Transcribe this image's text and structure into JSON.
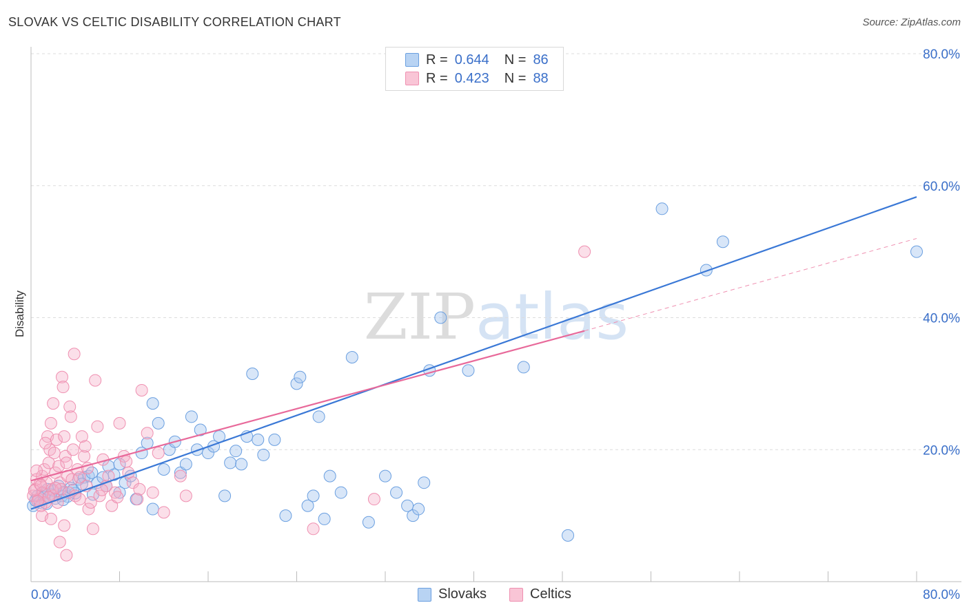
{
  "title": "SLOVAK VS CELTIC DISABILITY CORRELATION CHART",
  "source": "Source: ZipAtlas.com",
  "watermark": "ZIPatlas",
  "legend": {
    "rows": [
      {
        "r_label": "R =",
        "r_value": "0.644",
        "n_label": "N =",
        "n_value": "86",
        "fill": "#b8d3f3",
        "stroke": "#6a9fe0"
      },
      {
        "r_label": "R =",
        "r_value": "0.423",
        "n_label": "N =",
        "n_value": "88",
        "fill": "#f9c5d6",
        "stroke": "#ef8fb0"
      }
    ]
  },
  "bottom_legend": [
    {
      "label": "Slovaks",
      "fill": "#b8d3f3",
      "stroke": "#6a9fe0"
    },
    {
      "label": "Celtics",
      "fill": "#f9c5d6",
      "stroke": "#ef8fb0"
    }
  ],
  "chart_data": {
    "type": "scatter",
    "title": "SLOVAK VS CELTIC DISABILITY CORRELATION CHART",
    "xlabel": "",
    "ylabel": "Disability",
    "xlim": [
      0,
      80
    ],
    "ylim": [
      0,
      80
    ],
    "x_tick_labels": [
      "0.0%",
      "80.0%"
    ],
    "y_tick_labels": [
      "20.0%",
      "40.0%",
      "60.0%",
      "80.0%"
    ],
    "y_ticks": [
      20,
      40,
      60,
      80
    ],
    "grid": true,
    "colors": {
      "blue": "#3a78d6",
      "pink": "#e8699a",
      "blue_fill": "rgba(168,200,240,0.45)",
      "pink_fill": "rgba(246,176,200,0.40)",
      "axis_text": "#3a6fc9"
    },
    "series": [
      {
        "name": "Slovaks",
        "color": "#3a78d6",
        "trend": {
          "x0": 0,
          "y0": 11.0,
          "x1": 80,
          "y1": 58.3
        },
        "points": [
          [
            0.2,
            11.5
          ],
          [
            0.4,
            12.3
          ],
          [
            0.6,
            13.0
          ],
          [
            0.8,
            12.0
          ],
          [
            1.0,
            13.5
          ],
          [
            1.2,
            12.8
          ],
          [
            1.5,
            14.0
          ],
          [
            1.8,
            13.2
          ],
          [
            2.0,
            13.8
          ],
          [
            2.2,
            12.6
          ],
          [
            2.5,
            14.5
          ],
          [
            2.8,
            13.0
          ],
          [
            3.0,
            13.6
          ],
          [
            3.3,
            12.9
          ],
          [
            3.6,
            14.2
          ],
          [
            4.0,
            13.4
          ],
          [
            4.3,
            15.5
          ],
          [
            4.8,
            15.8
          ],
          [
            5.2,
            16.0
          ],
          [
            5.5,
            16.5
          ],
          [
            6.0,
            15.0
          ],
          [
            6.5,
            15.8
          ],
          [
            7.0,
            17.5
          ],
          [
            7.5,
            16.2
          ],
          [
            8.0,
            17.8
          ],
          [
            8.5,
            15.0
          ],
          [
            9.0,
            16.0
          ],
          [
            9.5,
            12.5
          ],
          [
            10.0,
            19.5
          ],
          [
            10.5,
            21.0
          ],
          [
            11.0,
            27.0
          ],
          [
            11.5,
            24.0
          ],
          [
            12.0,
            17.0
          ],
          [
            12.5,
            20.0
          ],
          [
            13.0,
            21.2
          ],
          [
            13.5,
            16.5
          ],
          [
            14.0,
            17.8
          ],
          [
            14.5,
            25.0
          ],
          [
            15.0,
            20.0
          ],
          [
            15.3,
            23.0
          ],
          [
            16.0,
            19.5
          ],
          [
            16.5,
            20.5
          ],
          [
            17.0,
            22.0
          ],
          [
            17.5,
            13.0
          ],
          [
            18.0,
            18.0
          ],
          [
            18.5,
            19.8
          ],
          [
            19.0,
            17.8
          ],
          [
            19.5,
            22.0
          ],
          [
            20.0,
            31.5
          ],
          [
            20.5,
            21.5
          ],
          [
            21.0,
            19.2
          ],
          [
            22.0,
            21.5
          ],
          [
            23.0,
            10.0
          ],
          [
            24.0,
            30.0
          ],
          [
            24.3,
            31.0
          ],
          [
            25.0,
            11.5
          ],
          [
            25.5,
            13.0
          ],
          [
            26.0,
            25.0
          ],
          [
            26.5,
            9.5
          ],
          [
            27.0,
            16.0
          ],
          [
            28.0,
            13.5
          ],
          [
            29.0,
            34.0
          ],
          [
            30.5,
            9.0
          ],
          [
            32.0,
            16.0
          ],
          [
            33.0,
            13.5
          ],
          [
            34.0,
            11.5
          ],
          [
            34.5,
            10.0
          ],
          [
            35.0,
            11.0
          ],
          [
            35.5,
            15.0
          ],
          [
            36.0,
            32.0
          ],
          [
            37.0,
            40.0
          ],
          [
            39.5,
            32.0
          ],
          [
            44.5,
            32.5
          ],
          [
            48.5,
            7.0
          ],
          [
            57.0,
            56.5
          ],
          [
            61.0,
            47.2
          ],
          [
            62.5,
            51.5
          ],
          [
            80.0,
            50.0
          ],
          [
            11.0,
            11.0
          ],
          [
            8.0,
            13.5
          ],
          [
            6.8,
            14.5
          ],
          [
            5.6,
            13.2
          ],
          [
            3.8,
            13.9
          ],
          [
            2.9,
            12.4
          ],
          [
            4.6,
            14.8
          ],
          [
            1.4,
            11.8
          ]
        ]
      },
      {
        "name": "Celtics",
        "color": "#e8699a",
        "trend": {
          "x0": 0,
          "y0": 15.3,
          "x1": 50,
          "y1": 38.0,
          "dash_x1": 80,
          "dash_y1": 52.0
        },
        "points": [
          [
            0.2,
            13.0
          ],
          [
            0.4,
            14.0
          ],
          [
            0.5,
            15.5
          ],
          [
            0.7,
            12.5
          ],
          [
            0.8,
            14.8
          ],
          [
            1.0,
            16.0
          ],
          [
            1.1,
            13.5
          ],
          [
            1.2,
            17.0
          ],
          [
            1.3,
            12.0
          ],
          [
            1.4,
            15.0
          ],
          [
            1.5,
            22.0
          ],
          [
            1.6,
            18.0
          ],
          [
            1.7,
            20.0
          ],
          [
            1.8,
            24.0
          ],
          [
            1.9,
            14.0
          ],
          [
            2.0,
            13.0
          ],
          [
            2.1,
            19.5
          ],
          [
            2.2,
            16.5
          ],
          [
            2.3,
            21.5
          ],
          [
            2.4,
            12.0
          ],
          [
            2.5,
            17.5
          ],
          [
            2.6,
            15.0
          ],
          [
            2.7,
            14.0
          ],
          [
            2.8,
            31.0
          ],
          [
            2.9,
            29.5
          ],
          [
            3.0,
            22.0
          ],
          [
            3.1,
            19.0
          ],
          [
            3.2,
            18.0
          ],
          [
            3.3,
            16.0
          ],
          [
            3.4,
            13.5
          ],
          [
            3.5,
            26.5
          ],
          [
            3.6,
            25.0
          ],
          [
            3.7,
            15.5
          ],
          [
            3.8,
            20.0
          ],
          [
            3.9,
            34.5
          ],
          [
            4.0,
            13.0
          ],
          [
            4.2,
            17.0
          ],
          [
            4.4,
            12.5
          ],
          [
            4.6,
            22.0
          ],
          [
            4.8,
            19.0
          ],
          [
            5.0,
            14.5
          ],
          [
            5.2,
            11.0
          ],
          [
            5.4,
            12.0
          ],
          [
            5.6,
            8.0
          ],
          [
            5.8,
            30.5
          ],
          [
            6.0,
            23.5
          ],
          [
            6.2,
            13.0
          ],
          [
            6.5,
            18.5
          ],
          [
            6.8,
            14.5
          ],
          [
            7.0,
            16.0
          ],
          [
            7.3,
            11.5
          ],
          [
            7.6,
            13.5
          ],
          [
            8.0,
            24.0
          ],
          [
            8.4,
            19.0
          ],
          [
            8.8,
            16.5
          ],
          [
            9.2,
            15.0
          ],
          [
            9.6,
            12.5
          ],
          [
            10.0,
            29.0
          ],
          [
            10.5,
            22.5
          ],
          [
            11.0,
            13.5
          ],
          [
            11.5,
            19.5
          ],
          [
            12.0,
            10.5
          ],
          [
            13.5,
            16.0
          ],
          [
            14.0,
            13.0
          ],
          [
            25.5,
            8.0
          ],
          [
            31.0,
            12.5
          ],
          [
            50.0,
            50.0
          ],
          [
            1.0,
            10.0
          ],
          [
            1.8,
            9.5
          ],
          [
            2.6,
            6.0
          ],
          [
            3.2,
            4.0
          ],
          [
            0.9,
            11.5
          ],
          [
            1.6,
            12.8
          ],
          [
            2.2,
            14.2
          ],
          [
            0.3,
            13.8
          ],
          [
            0.6,
            12.2
          ],
          [
            4.4,
            15.8
          ],
          [
            5.1,
            17.2
          ],
          [
            6.4,
            13.9
          ],
          [
            7.8,
            12.8
          ],
          [
            8.6,
            18.2
          ],
          [
            9.8,
            14.0
          ],
          [
            3.0,
            8.5
          ],
          [
            4.9,
            20.5
          ],
          [
            2.0,
            27.0
          ],
          [
            1.3,
            21.0
          ],
          [
            0.5,
            16.8
          ],
          [
            0.9,
            14.6
          ]
        ]
      }
    ]
  }
}
